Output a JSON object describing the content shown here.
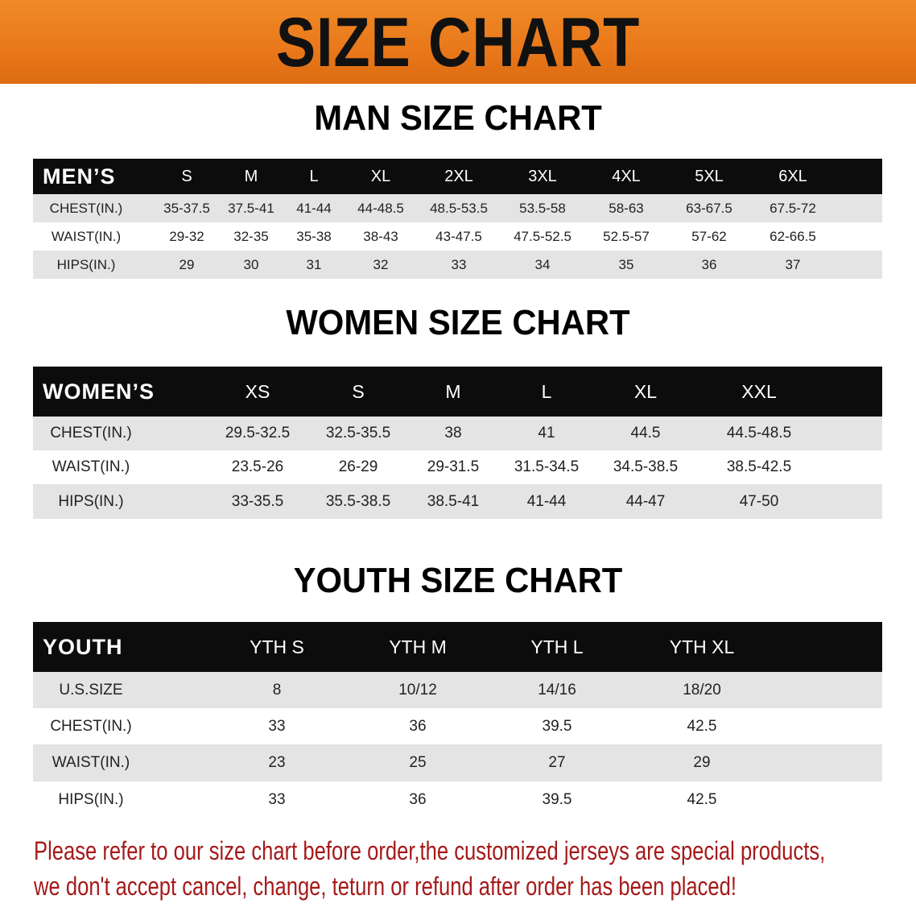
{
  "banner": {
    "title": "SIZE CHART",
    "background_color": "#e9781a"
  },
  "men": {
    "title": "MAN SIZE CHART",
    "header_label": "MEN’S",
    "sizes": [
      "S",
      "M",
      "L",
      "XL",
      "2XL",
      "3XL",
      "4XL",
      "5XL",
      "6XL"
    ],
    "rows": [
      {
        "label": "CHEST(IN.)",
        "values": [
          "35-37.5",
          "37.5-41",
          "41-44",
          "44-48.5",
          "48.5-53.5",
          "53.5-58",
          "58-63",
          "63-67.5",
          "67.5-72"
        ]
      },
      {
        "label": "WAIST(IN.)",
        "values": [
          "29-32",
          "32-35",
          "35-38",
          "38-43",
          "43-47.5",
          "47.5-52.5",
          "52.5-57",
          "57-62",
          "62-66.5"
        ]
      },
      {
        "label": "HIPS(IN.)",
        "values": [
          "29",
          "30",
          "31",
          "32",
          "33",
          "34",
          "35",
          "36",
          "37"
        ]
      }
    ]
  },
  "women": {
    "title": "WOMEN SIZE CHART",
    "header_label": "WOMEN’S",
    "sizes": [
      "XS",
      "S",
      "M",
      "L",
      "XL",
      "XXL"
    ],
    "rows": [
      {
        "label": "CHEST(IN.)",
        "values": [
          "29.5-32.5",
          "32.5-35.5",
          "38",
          "41",
          "44.5",
          "44.5-48.5"
        ]
      },
      {
        "label": "WAIST(IN.)",
        "values": [
          "23.5-26",
          "26-29",
          "29-31.5",
          "31.5-34.5",
          "34.5-38.5",
          "38.5-42.5"
        ]
      },
      {
        "label": "HIPS(IN.)",
        "values": [
          "33-35.5",
          "35.5-38.5",
          "38.5-41",
          "41-44",
          "44-47",
          "47-50"
        ]
      }
    ]
  },
  "youth": {
    "title": "YOUTH SIZE CHART",
    "header_label": "YOUTH",
    "sizes": [
      "YTH S",
      "YTH M",
      "YTH L",
      "YTH XL"
    ],
    "rows": [
      {
        "label": "U.S.SIZE",
        "values": [
          "8",
          "10/12",
          "14/16",
          "18/20"
        ]
      },
      {
        "label": "CHEST(IN.)",
        "values": [
          "33",
          "36",
          "39.5",
          "42.5"
        ]
      },
      {
        "label": "WAIST(IN.)",
        "values": [
          "23",
          "25",
          "27",
          "29"
        ]
      },
      {
        "label": "HIPS(IN.)",
        "values": [
          "33",
          "36",
          "39.5",
          "42.5"
        ]
      }
    ]
  },
  "notice": {
    "line1": "Please refer to our size chart before order,the customized jerseys are special products,",
    "line2": "we don't accept cancel, change, teturn or refund after order has been placed!",
    "color": "#a51a1a"
  }
}
